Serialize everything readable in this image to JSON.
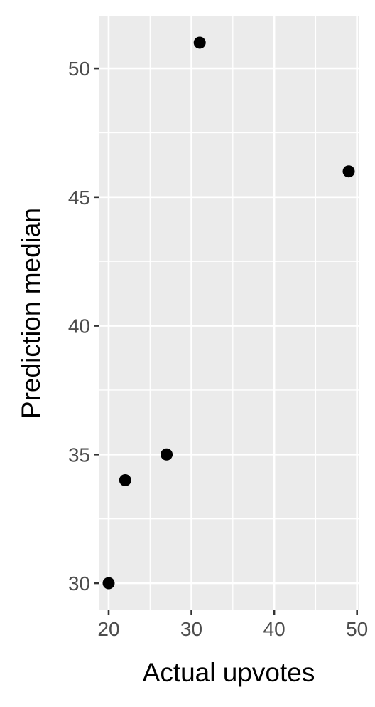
{
  "chart_data": {
    "type": "scatter",
    "title": "",
    "xlabel": "Actual upvotes",
    "ylabel": "Prediction median",
    "xlim": [
      18.8,
      50.2
    ],
    "ylim": [
      28.95,
      52.05
    ],
    "x_ticks": [
      20,
      30,
      40,
      50
    ],
    "y_ticks": [
      30,
      35,
      40,
      45,
      50
    ],
    "x_tick_labels": [
      "20",
      "30",
      "40",
      "50"
    ],
    "y_tick_labels": [
      "30",
      "35",
      "40",
      "45",
      "50"
    ],
    "grid": true,
    "legend": "none",
    "points": [
      {
        "x": 20,
        "y": 30
      },
      {
        "x": 22,
        "y": 34
      },
      {
        "x": 27,
        "y": 35
      },
      {
        "x": 31,
        "y": 51
      },
      {
        "x": 49,
        "y": 46
      }
    ]
  }
}
